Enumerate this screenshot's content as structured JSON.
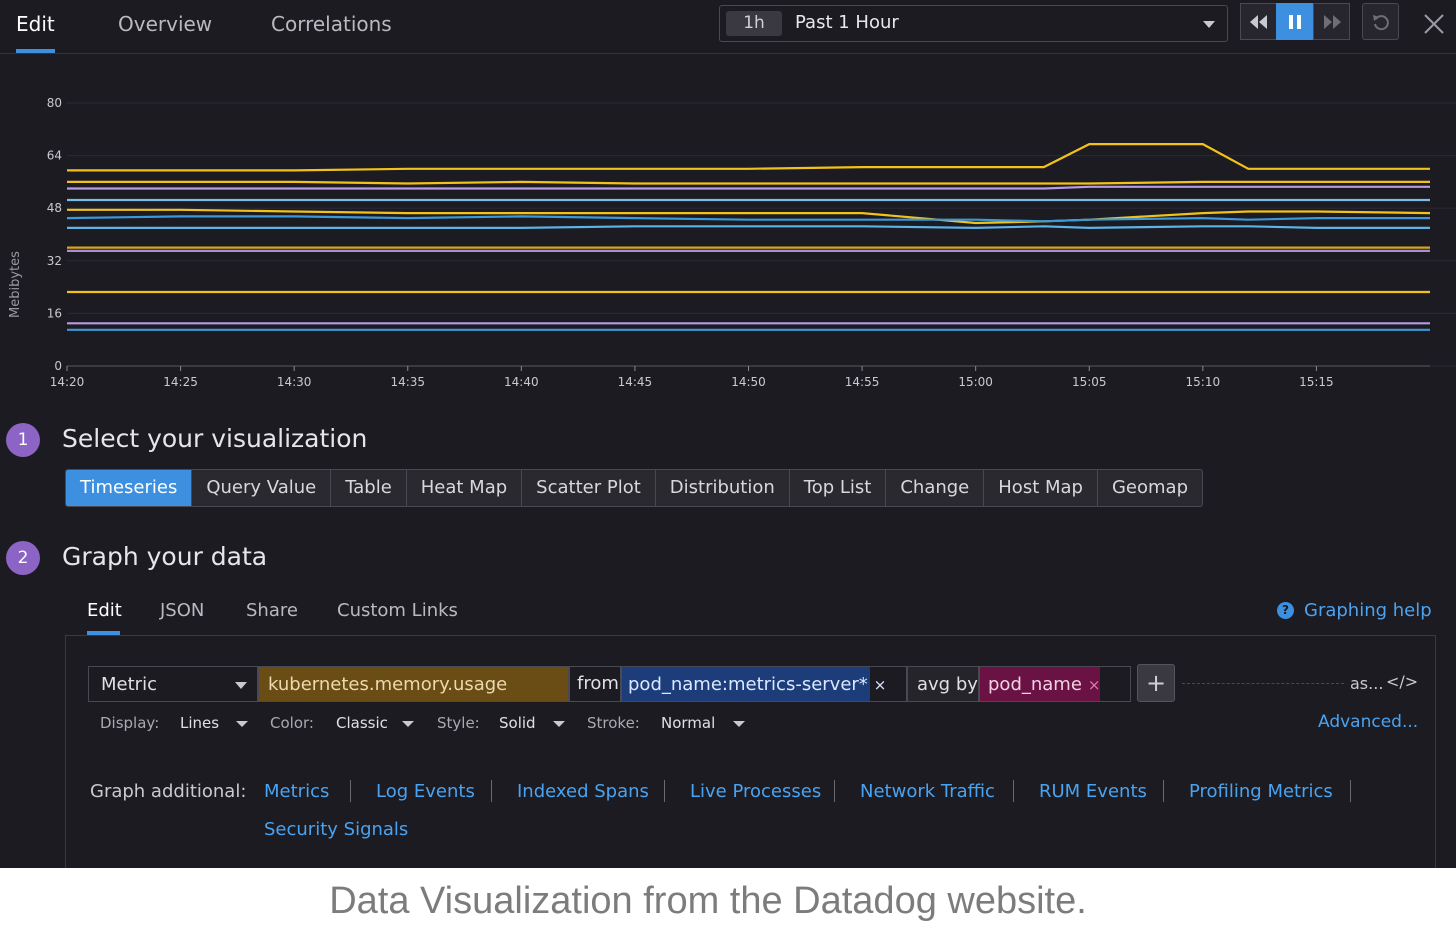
{
  "top_tabs": [
    {
      "label": "Edit",
      "active": true
    },
    {
      "label": "Overview",
      "active": false
    },
    {
      "label": "Correlations",
      "active": false
    }
  ],
  "time_picker": {
    "badge": "1h",
    "label": "Past 1 Hour"
  },
  "playback_buttons": [
    "rewind-icon",
    "pause-icon",
    "fast-forward-icon",
    "reset-icon",
    "close-icon"
  ],
  "chart_data": {
    "type": "line",
    "ylabel": "Mebibytes",
    "ylim": [
      0,
      80
    ],
    "yticks": [
      "0",
      "16",
      "32",
      "48",
      "64",
      "80"
    ],
    "xticks": [
      "14:20",
      "14:25",
      "14:30",
      "14:35",
      "14:40",
      "14:45",
      "14:50",
      "14:55",
      "15:00",
      "15:05",
      "15:10",
      "15:15"
    ],
    "x": [
      "14:20",
      "14:25",
      "14:30",
      "14:35",
      "14:40",
      "14:45",
      "14:50",
      "14:55",
      "15:00",
      "15:03",
      "15:05",
      "15:10",
      "15:12",
      "15:15",
      "15:20"
    ],
    "grid": true,
    "series": [
      {
        "color": "#f2c21b",
        "values": [
          59.5,
          59.5,
          59.5,
          60,
          60,
          60,
          60,
          60.5,
          60.5,
          60.5,
          67.5,
          67.5,
          60,
          60,
          60
        ]
      },
      {
        "color": "#f2c21b",
        "values": [
          56,
          56,
          56,
          55.5,
          56,
          55.5,
          55.5,
          55.5,
          55.5,
          55.5,
          55.5,
          56,
          56,
          56,
          56
        ]
      },
      {
        "color": "#b99ae6",
        "values": [
          54,
          54,
          54,
          54,
          54,
          54,
          54,
          54,
          54,
          54,
          54.5,
          54.5,
          54.5,
          54.5,
          54.5
        ]
      },
      {
        "color": "#78bce8",
        "values": [
          50.5,
          50.5,
          50.5,
          50.5,
          50.5,
          50.5,
          50.5,
          50.5,
          50.5,
          50.5,
          50.5,
          50.5,
          50.5,
          50.5,
          50.5
        ]
      },
      {
        "color": "#f2c21b",
        "values": [
          47.5,
          47.5,
          47,
          46.5,
          46.5,
          46.5,
          46.5,
          46.5,
          43.5,
          44,
          44.5,
          46.5,
          47,
          47,
          46.5
        ]
      },
      {
        "color": "#3a9ad9",
        "values": [
          45,
          45.5,
          45.5,
          45,
          45.5,
          45,
          44.5,
          44.5,
          44.5,
          44,
          44.5,
          45,
          44.5,
          45,
          45
        ]
      },
      {
        "color": "#5bb3e6",
        "values": [
          42,
          42,
          42,
          42,
          42,
          42.5,
          42.5,
          42.5,
          42,
          42.5,
          42,
          42.5,
          42.5,
          42,
          42
        ]
      },
      {
        "color": "#d9a41b",
        "values": [
          36,
          36,
          36,
          36,
          36,
          36,
          36,
          36,
          36,
          36,
          36,
          36,
          36,
          36,
          36
        ]
      },
      {
        "color": "#a78de0",
        "values": [
          35,
          35,
          35,
          35,
          35,
          35,
          35,
          35,
          35,
          35,
          35,
          35,
          35,
          35,
          35
        ]
      },
      {
        "color": "#f2c21b",
        "values": [
          22.5,
          22.5,
          22.5,
          22.5,
          22.5,
          22.5,
          22.5,
          22.5,
          22.5,
          22.5,
          22.5,
          22.5,
          22.5,
          22.5,
          22.5
        ]
      },
      {
        "color": "#b99ae6",
        "values": [
          13,
          13,
          13,
          13,
          13,
          13,
          13,
          13,
          13,
          13,
          13,
          13,
          13,
          13,
          13
        ]
      },
      {
        "color": "#3a9ad9",
        "values": [
          11,
          11,
          11,
          11,
          11,
          11,
          11,
          11,
          11,
          11,
          11,
          11,
          11,
          11,
          11
        ]
      }
    ]
  },
  "step1": {
    "number": "1",
    "title": "Select your visualization"
  },
  "viz_types": [
    {
      "label": "Timeseries",
      "active": true
    },
    {
      "label": "Query Value",
      "active": false
    },
    {
      "label": "Table",
      "active": false
    },
    {
      "label": "Heat Map",
      "active": false
    },
    {
      "label": "Scatter Plot",
      "active": false
    },
    {
      "label": "Distribution",
      "active": false
    },
    {
      "label": "Top List",
      "active": false
    },
    {
      "label": "Change",
      "active": false
    },
    {
      "label": "Host Map",
      "active": false
    },
    {
      "label": "Geomap",
      "active": false
    }
  ],
  "step2": {
    "number": "2",
    "title": "Graph your data"
  },
  "editor_tabs": [
    "Edit",
    "JSON",
    "Share",
    "Custom Links"
  ],
  "graphing_help": "Graphing help",
  "query": {
    "source": "Metric",
    "metric": "kubernetes.memory.usage",
    "from_label": "from",
    "from_tag": "pod_name:metrics-server*",
    "remove_mark": "×",
    "avg_label": "avg by",
    "by_tag": "pod_name",
    "add": "+",
    "as_label": "as...",
    "code_icon": "</>"
  },
  "options": {
    "display_label": "Display:",
    "display_value": "Lines",
    "color_label": "Color:",
    "color_value": "Classic",
    "style_label": "Style:",
    "style_value": "Solid",
    "stroke_label": "Stroke:",
    "stroke_value": "Normal",
    "advanced": "Advanced..."
  },
  "graph_additional": {
    "label": "Graph additional:",
    "links": [
      "Metrics",
      "Log Events",
      "Indexed Spans",
      "Live Processes",
      "Network Traffic",
      "RUM Events",
      "Profiling Metrics",
      "Security Signals"
    ]
  },
  "caption": "Data Visualization from the Datadog website."
}
